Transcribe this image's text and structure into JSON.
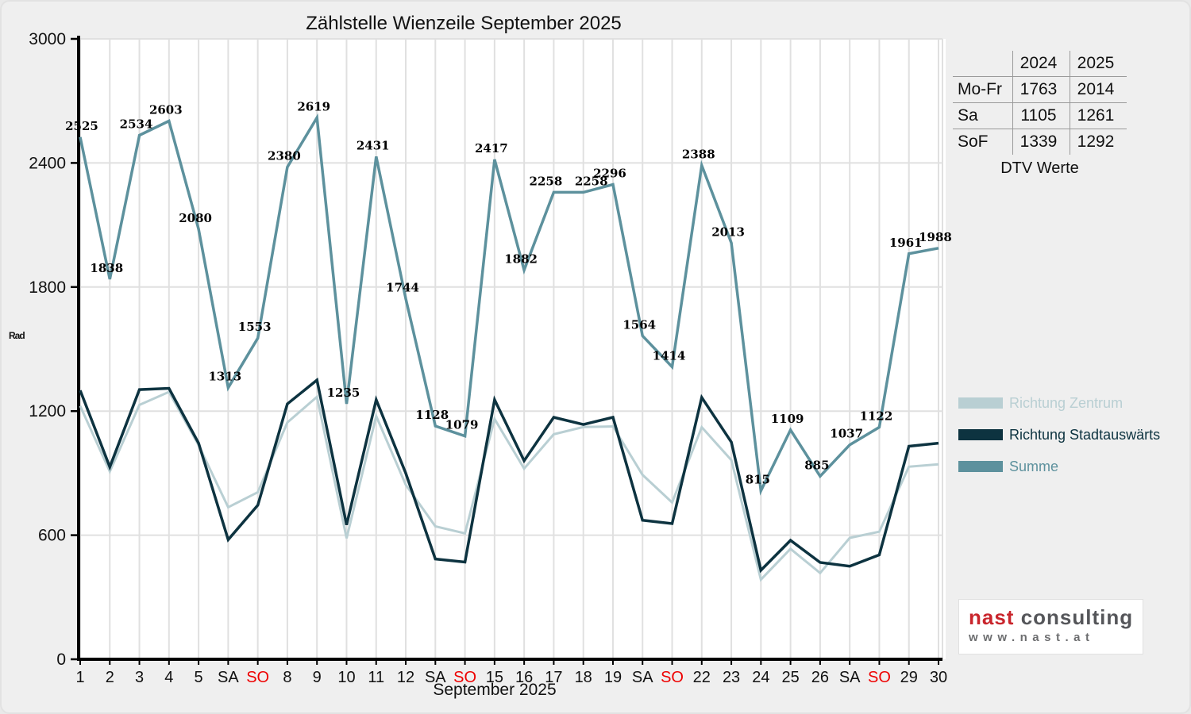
{
  "title": "Zählstelle Wienzeile September 2025",
  "y_axis_label": "Rad",
  "x_axis_label": "September 2025",
  "chart_data": {
    "type": "line",
    "title": "Zählstelle Wienzeile September 2025",
    "xlabel": "September 2025",
    "ylabel": "Rad",
    "ylim": [
      0,
      3000
    ],
    "y_ticks": [
      0,
      600,
      1200,
      1800,
      2400,
      3000
    ],
    "grid": true,
    "legend_position": "right",
    "categories": [
      "1",
      "2",
      "3",
      "4",
      "5",
      "SA",
      "SO",
      "8",
      "9",
      "10",
      "11",
      "12",
      "SA",
      "SO",
      "15",
      "16",
      "17",
      "18",
      "19",
      "SA",
      "SO",
      "22",
      "23",
      "24",
      "25",
      "26",
      "SA",
      "SO",
      "29",
      "30"
    ],
    "sunday_label": "SO",
    "sunday_color": "#ee0000",
    "series": [
      {
        "name": "Richtung Zentrum",
        "color": "#b9cfd3",
        "values_estimated": true,
        "values": [
          1225,
          908,
          1230,
          1293,
          1035,
          735,
          808,
          1145,
          1269,
          585,
          1176,
          844,
          643,
          609,
          1162,
          922,
          1088,
          1123,
          1126,
          892,
          758,
          1122,
          963,
          385,
          534,
          417,
          587,
          617,
          931,
          943
        ]
      },
      {
        "name": "Richtung Stadtauswärts",
        "color": "#0d3340",
        "values_estimated": true,
        "values": [
          1300,
          930,
          1304,
          1310,
          1045,
          578,
          745,
          1235,
          1350,
          650,
          1255,
          900,
          485,
          470,
          1255,
          960,
          1170,
          1135,
          1170,
          672,
          656,
          1266,
          1050,
          430,
          575,
          468,
          450,
          505,
          1030,
          1045
        ]
      },
      {
        "name": "Summe",
        "color": "#5d919d",
        "show_point_labels": true,
        "values": [
          2525,
          1838,
          2534,
          2603,
          2080,
          1313,
          1553,
          2380,
          2619,
          1235,
          2431,
          1744,
          1128,
          1079,
          2417,
          1882,
          2258,
          2258,
          2296,
          1564,
          1414,
          2388,
          2013,
          815,
          1109,
          885,
          1037,
          1122,
          1961,
          1988
        ]
      }
    ]
  },
  "dtv_table": {
    "header": [
      "",
      "2024",
      "2025"
    ],
    "rows": [
      [
        "Mo-Fr",
        "1763",
        "2014"
      ],
      [
        "Sa",
        "1105",
        "1261"
      ],
      [
        "SoF",
        "1339",
        "1292"
      ]
    ],
    "caption": "DTV Werte"
  },
  "legend": [
    {
      "label": "Richtung Zentrum",
      "color": "#b9cfd3"
    },
    {
      "label": "Richtung Stadtauswärts",
      "color": "#0d3340"
    },
    {
      "label": "Summe",
      "color": "#5d919d"
    }
  ],
  "logo": {
    "brand_primary": "nast",
    "brand_secondary": "consulting",
    "url": "www.nast.at"
  },
  "colors": {
    "figure_background": "#efefef",
    "plot_background": "#ffffff",
    "gridline": "#e0e0e0",
    "axis": "#000000",
    "sunday_tick": "#ee0000"
  }
}
